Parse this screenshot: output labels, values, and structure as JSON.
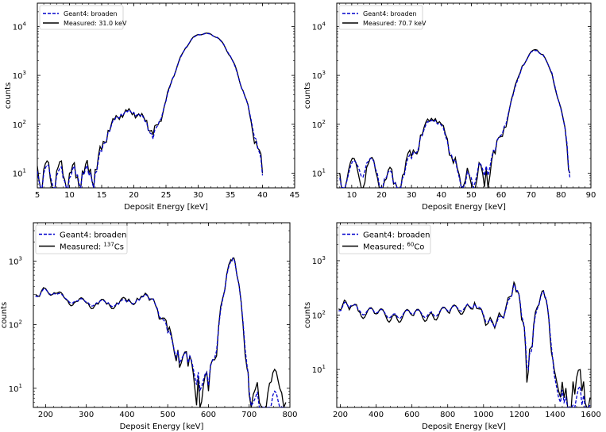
{
  "chart_data": [
    {
      "type": "line",
      "panel": "top-left",
      "xlabel": "Deposit Energy [keV]",
      "ylabel": "counts",
      "xlim": [
        5,
        45
      ],
      "ylim": [
        5,
        30000
      ],
      "yscale": "log",
      "xticks": [
        5,
        10,
        15,
        20,
        25,
        30,
        35,
        40,
        45
      ],
      "xtick_labels": [
        "5",
        "10",
        "15",
        "20",
        "25",
        "30",
        "35",
        "40",
        "45"
      ],
      "yticks": [
        10,
        100,
        1000,
        10000
      ],
      "ytick_labels": [
        {
          "base": "10",
          "exp": "1"
        },
        {
          "base": "10",
          "exp": "2"
        },
        {
          "base": "10",
          "exp": "3"
        },
        {
          "base": "10",
          "exp": "4"
        }
      ],
      "legend_position": "top-left",
      "series": [
        {
          "name": "Geant4: broaden",
          "legend_label": "Geant4: broaden",
          "color": "#0000cc",
          "dashed": true
        },
        {
          "name": "Measured",
          "legend_label": "Measured:  31.0 keV",
          "color": "#000000",
          "dashed": false
        }
      ],
      "x": [
        5,
        6,
        7,
        8,
        9,
        10,
        11,
        12,
        13,
        14,
        15,
        16,
        17,
        18,
        19,
        20,
        21,
        22,
        23,
        24,
        25,
        26,
        27,
        28,
        29,
        30,
        31,
        32,
        33,
        34,
        35,
        36,
        37,
        38,
        39,
        40
      ],
      "geant4": [
        11,
        10,
        9,
        9,
        8,
        8,
        9,
        10,
        9,
        10,
        28,
        70,
        120,
        160,
        180,
        175,
        150,
        110,
        50,
        120,
        300,
        850,
        1900,
        3600,
        5500,
        6800,
        7100,
        6900,
        5900,
        4200,
        2500,
        1200,
        470,
        170,
        50,
        9
      ],
      "measured": [
        14,
        12,
        8,
        11,
        9,
        10,
        8,
        11,
        10,
        12,
        30,
        75,
        125,
        155,
        185,
        170,
        145,
        120,
        60,
        115,
        310,
        860,
        1950,
        3550,
        5600,
        6850,
        7200,
        6950,
        5950,
        4250,
        2450,
        1250,
        480,
        160,
        45,
        10
      ]
    },
    {
      "type": "line",
      "panel": "top-right",
      "xlabel": "Deposit Energy [keV]",
      "ylabel": "counts",
      "xlim": [
        5,
        90
      ],
      "ylim": [
        5,
        30000
      ],
      "yscale": "log",
      "xticks": [
        10,
        20,
        30,
        40,
        50,
        60,
        70,
        80,
        90
      ],
      "xtick_labels": [
        "10",
        "20",
        "30",
        "40",
        "50",
        "60",
        "70",
        "80",
        "90"
      ],
      "yticks": [
        10,
        100,
        1000,
        10000
      ],
      "ytick_labels": [
        {
          "base": "10",
          "exp": "1"
        },
        {
          "base": "10",
          "exp": "2"
        },
        {
          "base": "10",
          "exp": "3"
        },
        {
          "base": "10",
          "exp": "4"
        }
      ],
      "legend_position": "top-left",
      "series": [
        {
          "name": "Geant4: broaden",
          "legend_label": "Geant4: broaden",
          "color": "#0000cc",
          "dashed": true
        },
        {
          "name": "Measured",
          "legend_label": "Measured:  70.7 keV",
          "color": "#000000",
          "dashed": false
        }
      ],
      "x": [
        6,
        9,
        12,
        15,
        18,
        21,
        24,
        27,
        30,
        33,
        36,
        38,
        40,
        42,
        44,
        46,
        48,
        50,
        52,
        55,
        58,
        61,
        64,
        67,
        70,
        72,
        74,
        77,
        80,
        82,
        83
      ],
      "geant4": [
        8,
        10,
        14,
        16,
        12,
        8,
        6,
        8,
        20,
        55,
        110,
        120,
        95,
        45,
        18,
        8,
        6,
        8,
        10,
        14,
        28,
        90,
        400,
        1500,
        3000,
        3200,
        2600,
        1100,
        200,
        40,
        8
      ],
      "measured": [
        10,
        12,
        11,
        13,
        11,
        7,
        6,
        9,
        22,
        60,
        115,
        130,
        100,
        50,
        16,
        9,
        7,
        6,
        8,
        12,
        25,
        85,
        420,
        1550,
        3050,
        3300,
        2650,
        1050,
        210,
        35,
        10
      ]
    },
    {
      "type": "line",
      "panel": "bottom-left",
      "xlabel": "Deposit Energy [keV]",
      "ylabel": "counts",
      "xlim": [
        170,
        800
      ],
      "ylim": [
        5,
        4000
      ],
      "yscale": "log",
      "xticks": [
        200,
        300,
        400,
        500,
        600,
        700,
        800
      ],
      "xtick_labels": [
        "200",
        "300",
        "400",
        "500",
        "600",
        "700",
        "800"
      ],
      "yticks": [
        10,
        100,
        1000
      ],
      "ytick_labels": [
        {
          "base": "10",
          "exp": "1"
        },
        {
          "base": "10",
          "exp": "2"
        },
        {
          "base": "10",
          "exp": "3"
        }
      ],
      "legend_position": "top-left",
      "series": [
        {
          "name": "Geant4: broaden",
          "legend_label": "Geant4: broaden",
          "color": "#0000cc",
          "dashed": true
        },
        {
          "name": "Measured",
          "legend_label": "Measured: ",
          "legend_sup": "137",
          "legend_suffix": "Cs",
          "color": "#000000",
          "dashed": false
        }
      ],
      "x": [
        175,
        190,
        200,
        225,
        250,
        275,
        300,
        325,
        350,
        375,
        400,
        425,
        440,
        450,
        460,
        475,
        500,
        525,
        550,
        575,
        600,
        615,
        625,
        635,
        645,
        655,
        660,
        665,
        675,
        685,
        695,
        700,
        710,
        725,
        750,
        775,
        790
      ],
      "geant4": [
        280,
        330,
        360,
        300,
        255,
        235,
        225,
        220,
        215,
        218,
        225,
        250,
        275,
        285,
        260,
        175,
        75,
        38,
        25,
        18,
        11,
        30,
        90,
        250,
        600,
        1000,
        1100,
        950,
        420,
        110,
        22,
        9,
        6,
        5,
        5,
        5,
        5
      ],
      "measured": [
        300,
        340,
        370,
        310,
        250,
        230,
        220,
        215,
        210,
        220,
        230,
        260,
        280,
        290,
        255,
        170,
        80,
        40,
        22,
        15,
        9,
        28,
        95,
        260,
        620,
        1050,
        1120,
        980,
        430,
        100,
        20,
        8,
        8,
        6,
        12,
        10,
        6
      ]
    },
    {
      "type": "line",
      "panel": "bottom-right",
      "xlabel": "Deposit Energy [keV]",
      "ylabel": "counts",
      "xlim": [
        180,
        1600
      ],
      "ylim": [
        2,
        5000
      ],
      "yscale": "log",
      "xticks": [
        200,
        400,
        600,
        800,
        1000,
        1200,
        1400,
        1600
      ],
      "xtick_labels": [
        "200",
        "400",
        "600",
        "800",
        "1000",
        "1200",
        "1400",
        "1600"
      ],
      "yticks": [
        10,
        100,
        1000
      ],
      "ytick_labels": [
        {
          "base": "10",
          "exp": "1"
        },
        {
          "base": "10",
          "exp": "2"
        },
        {
          "base": "10",
          "exp": "3"
        }
      ],
      "legend_position": "top-left",
      "series": [
        {
          "name": "Geant4: broaden",
          "legend_label": "Geant4: broaden",
          "color": "#0000cc",
          "dashed": true
        },
        {
          "name": "Measured",
          "legend_label": "Measured: ",
          "legend_sup": "60",
          "legend_suffix": "Co",
          "color": "#000000",
          "dashed": false
        }
      ],
      "x": [
        190,
        215,
        230,
        260,
        300,
        400,
        500,
        600,
        700,
        800,
        900,
        950,
        975,
        1000,
        1025,
        1050,
        1075,
        1100,
        1125,
        1150,
        1165,
        1175,
        1190,
        1205,
        1220,
        1235,
        1250,
        1265,
        1280,
        1300,
        1320,
        1335,
        1350,
        1365,
        1380,
        1395,
        1420,
        1450,
        1500,
        1550,
        1595
      ],
      "geant4": [
        120,
        150,
        170,
        150,
        125,
        110,
        105,
        105,
        110,
        120,
        145,
        160,
        140,
        100,
        75,
        70,
        75,
        90,
        130,
        210,
        310,
        350,
        280,
        170,
        80,
        30,
        10,
        20,
        60,
        130,
        220,
        270,
        200,
        90,
        25,
        8,
        3,
        2.5,
        2.2,
        2.2,
        2.2
      ],
      "measured": [
        130,
        160,
        180,
        145,
        120,
        105,
        100,
        100,
        105,
        115,
        140,
        170,
        130,
        95,
        70,
        75,
        80,
        95,
        140,
        220,
        330,
        370,
        270,
        160,
        75,
        25,
        9,
        25,
        65,
        140,
        230,
        280,
        190,
        85,
        20,
        10,
        4,
        3,
        6,
        4,
        3
      ]
    }
  ]
}
